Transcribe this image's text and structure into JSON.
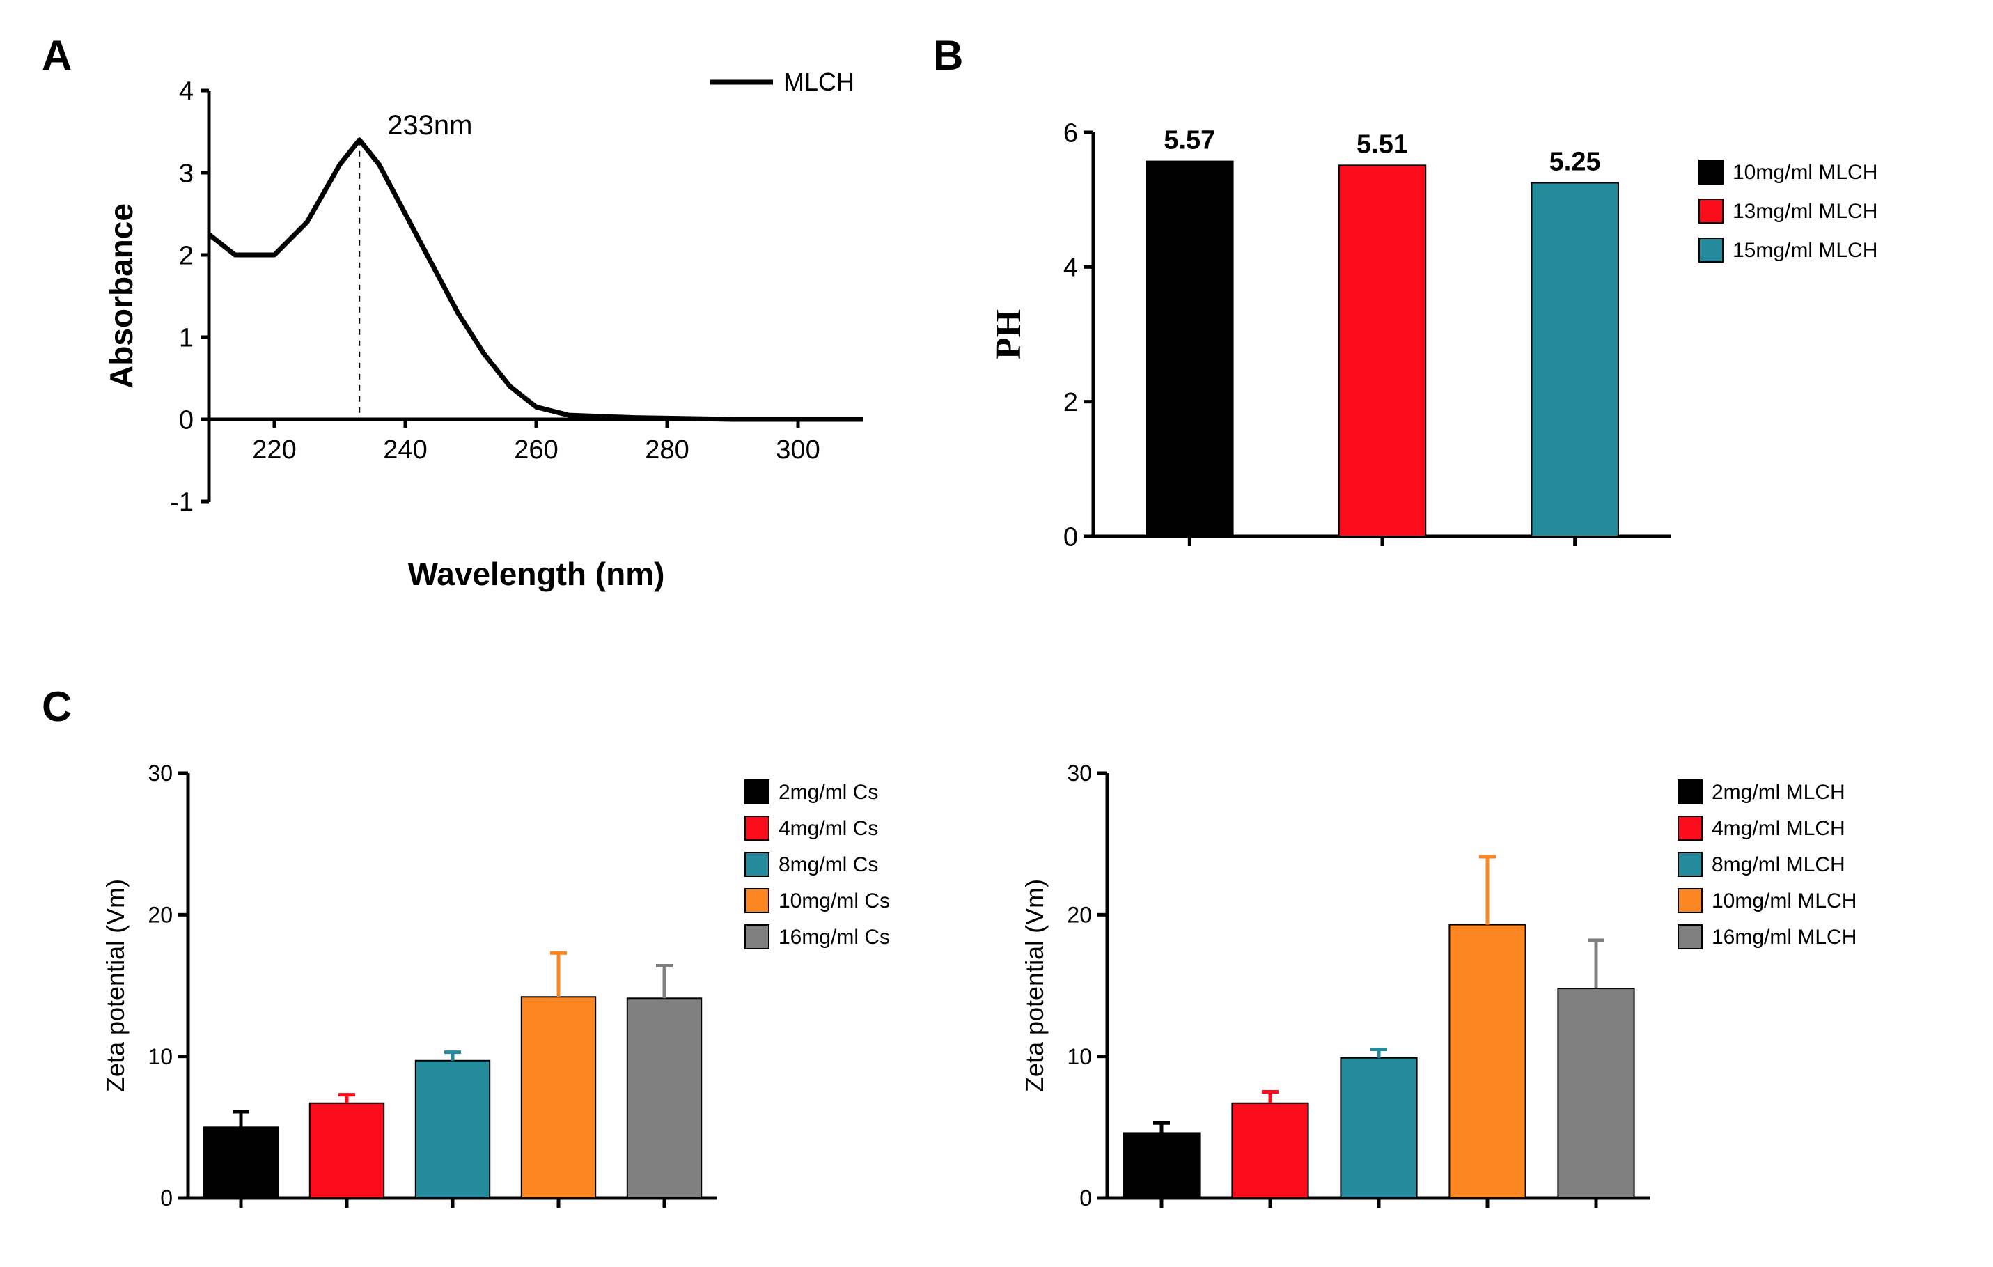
{
  "panelA": {
    "label": "A",
    "type": "line",
    "legend_label": "MLCH",
    "peak_label": "233nm",
    "xlabel": "Wavelength (nm)",
    "ylabel": "Absorbance",
    "xlim": [
      210,
      310
    ],
    "ylim": [
      -1,
      4
    ],
    "xticks": [
      220,
      240,
      260,
      280,
      300
    ],
    "yticks": [
      -1,
      0,
      1,
      2,
      3,
      4
    ],
    "line_color": "#000000",
    "line_width": 7,
    "peak_x": 233,
    "data": [
      [
        210,
        2.25
      ],
      [
        214,
        2.0
      ],
      [
        220,
        2.0
      ],
      [
        225,
        2.4
      ],
      [
        230,
        3.1
      ],
      [
        233,
        3.4
      ],
      [
        236,
        3.1
      ],
      [
        240,
        2.5
      ],
      [
        244,
        1.9
      ],
      [
        248,
        1.3
      ],
      [
        252,
        0.8
      ],
      [
        256,
        0.4
      ],
      [
        260,
        0.15
      ],
      [
        265,
        0.05
      ],
      [
        275,
        0.02
      ],
      [
        290,
        0.0
      ],
      [
        310,
        0.0
      ]
    ],
    "axis_width": 5,
    "tick_len": 12,
    "tick_fontsize": 38,
    "label_fontsize": 46,
    "legend_fontsize": 36
  },
  "panelB": {
    "label": "B",
    "type": "bar",
    "ylabel": "PH",
    "ylim": [
      0,
      6
    ],
    "yticks": [
      0,
      2,
      4,
      6
    ],
    "ytick_step": 2,
    "categories": [
      "10mg/ml MLCH",
      "13mg/ml MLCH",
      "15mg/ml MLCH"
    ],
    "values": [
      5.57,
      5.51,
      5.25
    ],
    "value_labels": [
      "5.57",
      "5.51",
      "5.25"
    ],
    "bar_colors": [
      "#000000",
      "#fb0d1c",
      "#238b9b"
    ],
    "bar_width": 0.45,
    "axis_width": 5,
    "tick_fontsize": 38,
    "label_fontsize": 52,
    "legend_fontsize": 30,
    "value_label_fontsize": 38,
    "legend_swatch": 34
  },
  "panelC": {
    "label": "C",
    "type": "bar_with_error",
    "left": {
      "ylabel": "Zeta potential (Vm)",
      "ylim": [
        0,
        30
      ],
      "yticks": [
        0,
        10,
        20,
        30
      ],
      "categories": [
        "2mg/ml Cs",
        "4mg/ml Cs",
        "8mg/ml Cs",
        "10mg/ml Cs",
        "16mg/ml Cs"
      ],
      "values": [
        5.0,
        6.7,
        9.7,
        14.2,
        14.1
      ],
      "errors": [
        1.1,
        0.6,
        0.6,
        3.1,
        2.3
      ],
      "bar_colors": [
        "#000000",
        "#fb0d1c",
        "#238b9b",
        "#fb8622",
        "#808080"
      ]
    },
    "right": {
      "ylabel": "Zeta potential (Vm)",
      "ylim": [
        0,
        30
      ],
      "yticks": [
        0,
        10,
        20,
        30
      ],
      "categories": [
        "2mg/ml MLCH",
        "4mg/ml MLCH",
        "8mg/ml MLCH",
        "10mg/ml MLCH",
        "16mg/ml MLCH"
      ],
      "values": [
        4.6,
        6.7,
        9.9,
        19.3,
        14.8
      ],
      "errors": [
        0.7,
        0.8,
        0.6,
        4.8,
        3.4
      ],
      "bar_colors": [
        "#000000",
        "#fb0d1c",
        "#238b9b",
        "#fb8622",
        "#808080"
      ]
    },
    "bar_width": 0.7,
    "axis_width": 5,
    "tick_fontsize": 32,
    "label_fontsize": 36,
    "legend_fontsize": 30,
    "legend_swatch": 34,
    "error_cap": 12,
    "error_width": 3
  },
  "colors": {
    "axis": "#000000",
    "text": "#000000",
    "bg": "#ffffff"
  }
}
